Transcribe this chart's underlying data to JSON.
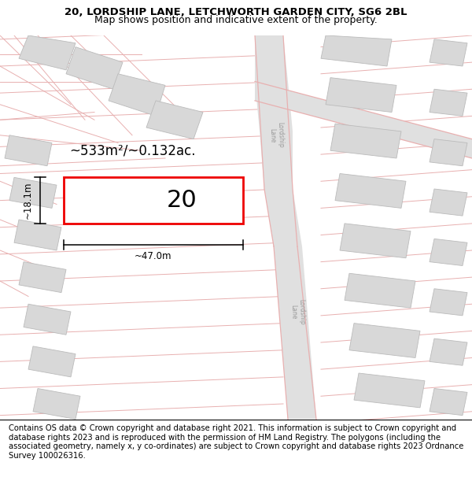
{
  "title_line1": "20, LORDSHIP LANE, LETCHWORTH GARDEN CITY, SG6 2BL",
  "title_line2": "Map shows position and indicative extent of the property.",
  "footer_text": "Contains OS data © Crown copyright and database right 2021. This information is subject to Crown copyright and database rights 2023 and is reproduced with the permission of HM Land Registry. The polygons (including the associated geometry, namely x, y co-ordinates) are subject to Crown copyright and database rights 2023 Ordnance Survey 100026316.",
  "bg_color": "#ffffff",
  "map_bg": "#faf7f7",
  "road_line_color": "#e8b0b0",
  "building_fill": "#d8d8d8",
  "building_edge": "#bbbbbb",
  "road_fill": "#e0e0e0",
  "highlight_fill": "#ffffff",
  "highlight_edge": "#ee0000",
  "highlight_lw": 2.0,
  "area_label": "~533m²/~0.132ac.",
  "number_label": "20",
  "dim_width": "~47.0m",
  "dim_height": "~18.1m",
  "title_fontsize": 9.5,
  "footer_fontsize": 7.2,
  "label_fontsize": 12,
  "number_fontsize": 22
}
